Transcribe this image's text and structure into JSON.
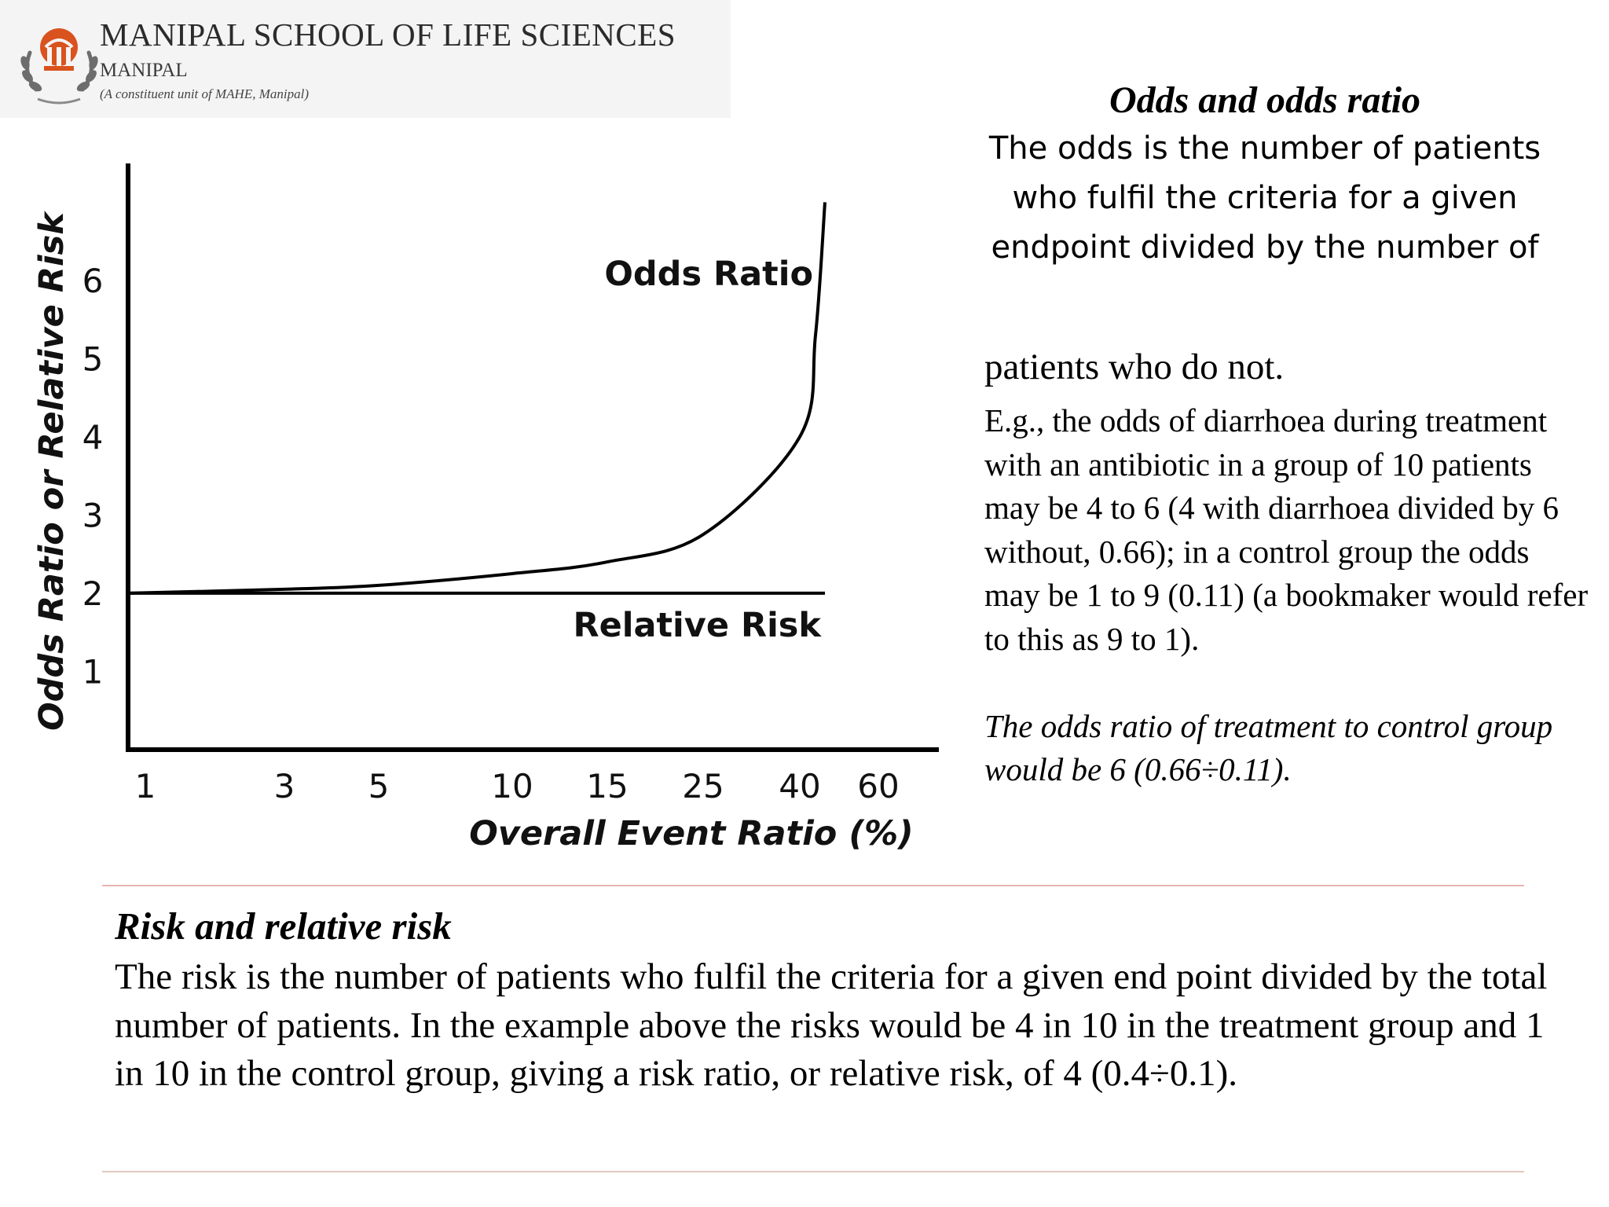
{
  "header": {
    "institution": "MANIPAL SCHOOL OF LIFE SCIENCES",
    "city": "MANIPAL",
    "subtitle": "(A constituent unit of MAHE, Manipal)",
    "emblem_color": "#d9531e"
  },
  "chart_data": {
    "type": "line",
    "xlabel": "Overall Event Ratio (%)",
    "ylabel": "Odds Ratio or Relative Risk",
    "x_ticks": [
      "1",
      "3",
      "5",
      "10",
      "15",
      "25",
      "40",
      "60"
    ],
    "y_ticks": [
      "1",
      "2",
      "3",
      "4",
      "5",
      "6"
    ],
    "ylim": [
      0.3,
      7.5
    ],
    "series": [
      {
        "name": "Odds Ratio",
        "x": [
          1,
          3,
          5,
          10,
          15,
          25,
          40,
          50,
          60
        ],
        "y": [
          2.0,
          2.05,
          2.1,
          2.25,
          2.4,
          2.75,
          4.0,
          5.3,
          7.0
        ]
      },
      {
        "name": "Relative Risk",
        "x": [
          1,
          60
        ],
        "y": [
          2.0,
          2.0
        ]
      }
    ],
    "grid": false,
    "legend": "inline labels"
  },
  "odds": {
    "title": "Odds and odds ratio",
    "definition": "The odds is the number of patients  who fulfil the criteria for a given  endpoint divided by the number of",
    "continuation": "patients who do not.",
    "example": "E.g., the odds of diarrhoea during treatment with an antibiotic in a group of 10 patients may be 4 to 6 (4 with diarrhoea divided by 6 without, 0.66); in a control group the odds may be 1 to 9 (0.11) (a bookmaker would refer to this as 9 to 1).",
    "ratio_note": "The odds ratio of treatment to control group would be 6 (0.66÷0.11)."
  },
  "risk": {
    "title": "Risk and relative risk",
    "text": "The risk is the number of patients who fulfil the criteria for a given end point divided by the total number of patients. In the example above the risks would be 4 in 10 in the treatment group and 1 in 10 in the control group, giving a risk ratio, or relative risk, of 4 (0.4÷0.1)."
  }
}
